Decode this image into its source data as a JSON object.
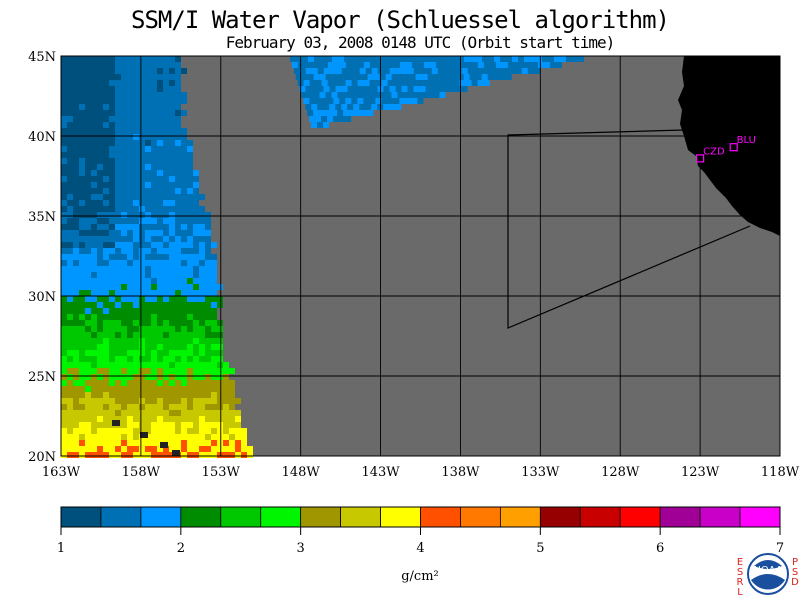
{
  "title": "SSM/I Water Vapor (Schluessel algorithm)",
  "subtitle": "February 03, 2008  0148 UTC  (Orbit start time)",
  "map": {
    "lon_range": [
      -163,
      -118
    ],
    "lat_range": [
      20,
      45
    ],
    "lon_ticks": [
      "163W",
      "158W",
      "153W",
      "148W",
      "143W",
      "138W",
      "133W",
      "128W",
      "123W",
      "118W"
    ],
    "lat_ticks": [
      "45N",
      "40N",
      "35N",
      "30N",
      "25N",
      "20N"
    ],
    "no_data_color": "#6a6a6a",
    "land_color": "#000000",
    "stations": [
      {
        "label": "CZD",
        "lon": -123.0,
        "lat": 38.6
      },
      {
        "label": "BLU",
        "lon": -120.9,
        "lat": 39.3
      }
    ],
    "station_color": "#ff00ff"
  },
  "colorbar": {
    "min": 1,
    "max": 7,
    "tick_labels": [
      "1",
      "2",
      "3",
      "4",
      "5",
      "6",
      "7"
    ],
    "colors": [
      "#00507d",
      "#0070b4",
      "#0096ff",
      "#008c00",
      "#00c800",
      "#00f500",
      "#a09600",
      "#c8c800",
      "#ffff00",
      "#ff5000",
      "#ff7800",
      "#ffa000",
      "#960000",
      "#c80000",
      "#ff0000",
      "#a00096",
      "#c800c8",
      "#ff00ff"
    ],
    "unit": "g/cm²"
  },
  "logo": {
    "left_text": "ESRL",
    "right_text": "PSD",
    "center_text": "NOAA"
  }
}
